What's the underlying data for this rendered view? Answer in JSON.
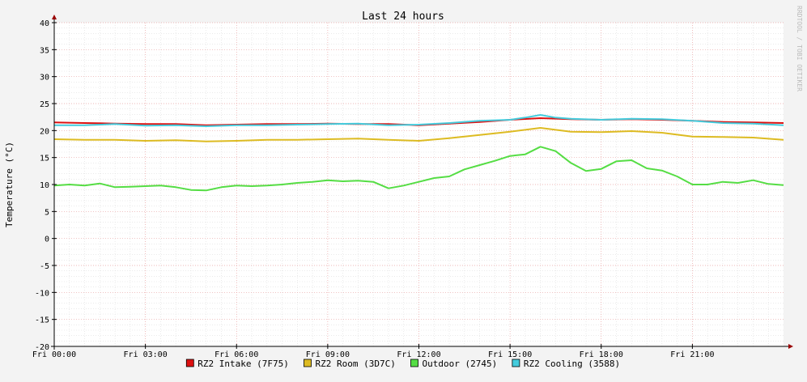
{
  "chart_data": {
    "type": "line",
    "title": "Last 24 hours",
    "ylabel": "Temperature (°C)",
    "watermark": "RRDTOOL / TOBI OETIKER",
    "ylim": [
      -20,
      40
    ],
    "xlim": [
      0,
      24
    ],
    "y_ticks": [
      -20,
      -15,
      -10,
      -5,
      0,
      5,
      10,
      15,
      20,
      25,
      30,
      35,
      40
    ],
    "x_ticks": [
      {
        "hour": 0,
        "label": "Fri 00:00"
      },
      {
        "hour": 3,
        "label": "Fri 03:00"
      },
      {
        "hour": 6,
        "label": "Fri 06:00"
      },
      {
        "hour": 9,
        "label": "Fri 09:00"
      },
      {
        "hour": 12,
        "label": "Fri 12:00"
      },
      {
        "hour": 15,
        "label": "Fri 15:00"
      },
      {
        "hour": 18,
        "label": "Fri 18:00"
      },
      {
        "hour": 21,
        "label": "Fri 21:00"
      }
    ],
    "grid": true,
    "legend_position": "bottom",
    "colors": {
      "background": "#f3f3f3",
      "plot_background": "#ffffff",
      "major_grid": "#e8a0a0",
      "minor_grid": "#dddddd",
      "axis": "#000000",
      "arrow": "#990000"
    },
    "series": [
      {
        "name": "RZ2 Intake (7F75)",
        "color": "#dd1111",
        "x": [
          0,
          1,
          2,
          3,
          4,
          5,
          6,
          7,
          8,
          9,
          10,
          11,
          12,
          13,
          14,
          15,
          16,
          17,
          18,
          19,
          20,
          21,
          22,
          23,
          24
        ],
        "y": [
          21.5,
          21.4,
          21.3,
          21.2,
          21.2,
          21.0,
          21.1,
          21.2,
          21.2,
          21.3,
          21.2,
          21.2,
          21.0,
          21.3,
          21.6,
          22.0,
          22.3,
          22.1,
          22.0,
          22.1,
          22.0,
          21.8,
          21.6,
          21.5,
          21.4
        ]
      },
      {
        "name": "RZ2 Room (3D7C)",
        "color": "#ddbb22",
        "x": [
          0,
          1,
          2,
          3,
          4,
          5,
          6,
          7,
          8,
          9,
          10,
          11,
          12,
          13,
          14,
          15,
          16,
          17,
          18,
          19,
          20,
          21,
          22,
          23,
          24
        ],
        "y": [
          18.4,
          18.3,
          18.3,
          18.1,
          18.2,
          18.0,
          18.1,
          18.3,
          18.3,
          18.4,
          18.5,
          18.3,
          18.1,
          18.6,
          19.2,
          19.8,
          20.5,
          19.8,
          19.7,
          19.9,
          19.6,
          18.9,
          18.8,
          18.7,
          18.3
        ]
      },
      {
        "name": "Outdoor (2745)",
        "color": "#55dd44",
        "x": [
          0,
          0.5,
          1,
          1.5,
          2,
          2.5,
          3,
          3.5,
          4,
          4.5,
          5,
          5.5,
          6,
          6.5,
          7,
          7.5,
          8,
          8.5,
          9,
          9.5,
          10,
          10.5,
          11,
          11.5,
          12,
          12.5,
          13,
          13.5,
          14,
          14.5,
          15,
          15.5,
          16,
          16.5,
          17,
          17.5,
          18,
          18.5,
          19,
          19.5,
          20,
          20.5,
          21,
          21.5,
          22,
          22.5,
          23,
          23.5,
          24
        ],
        "y": [
          9.8,
          10.0,
          9.8,
          10.2,
          9.5,
          9.6,
          9.7,
          9.8,
          9.5,
          9.0,
          8.9,
          9.5,
          9.8,
          9.7,
          9.8,
          10.0,
          10.3,
          10.5,
          10.8,
          10.6,
          10.7,
          10.5,
          9.3,
          9.8,
          10.5,
          11.2,
          11.5,
          12.8,
          13.6,
          14.4,
          15.3,
          15.6,
          17.0,
          16.2,
          14.0,
          12.5,
          12.9,
          14.3,
          14.5,
          13.0,
          12.6,
          11.5,
          10.0,
          10.0,
          10.5,
          10.3,
          10.8,
          10.1,
          9.9
        ]
      },
      {
        "name": "RZ2 Cooling (3588)",
        "color": "#44ccdd",
        "x": [
          0,
          1,
          2,
          3,
          4,
          5,
          6,
          7,
          8,
          9,
          10,
          11,
          12,
          13,
          14,
          15,
          15.5,
          16,
          16.5,
          17,
          18,
          19,
          20,
          21,
          22,
          23,
          24
        ],
        "y": [
          21.0,
          21.0,
          21.2,
          20.9,
          21.0,
          20.8,
          21.0,
          21.0,
          21.1,
          21.2,
          21.3,
          21.0,
          21.1,
          21.4,
          21.8,
          22.0,
          22.4,
          22.9,
          22.4,
          22.2,
          22.0,
          22.2,
          22.1,
          21.8,
          21.4,
          21.3,
          21.0
        ]
      }
    ]
  }
}
